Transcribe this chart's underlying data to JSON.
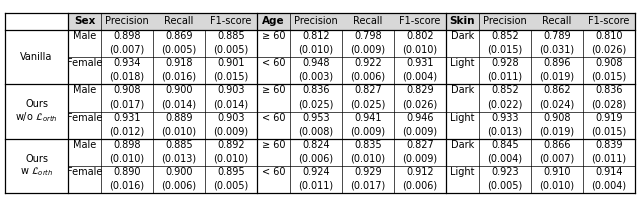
{
  "sections": [
    {
      "label": "Vanilla",
      "sex": {
        "Male": {
          "vals": [
            "0.898",
            "0.869",
            "0.885"
          ],
          "stds": [
            "(0.007)",
            "(0.005)",
            "(0.005)"
          ]
        },
        "Female": {
          "vals": [
            "0.934",
            "0.918",
            "0.901"
          ],
          "stds": [
            "(0.018)",
            "(0.016)",
            "(0.015)"
          ]
        }
      },
      "age": {
        "ge60": {
          "vals": [
            "0.812",
            "0.798",
            "0.802"
          ],
          "stds": [
            "(0.010)",
            "(0.009)",
            "(0.010)"
          ]
        },
        "lt60": {
          "vals": [
            "0.948",
            "0.922",
            "0.931"
          ],
          "stds": [
            "(0.003)",
            "(0.006)",
            "(0.004)"
          ]
        }
      },
      "skin": {
        "Dark": {
          "vals": [
            "0.852",
            "0.789",
            "0.810"
          ],
          "stds": [
            "(0.015)",
            "(0.031)",
            "(0.026)"
          ]
        },
        "Light": {
          "vals": [
            "0.928",
            "0.896",
            "0.908"
          ],
          "stds": [
            "(0.011)",
            "(0.019)",
            "(0.015)"
          ]
        }
      }
    },
    {
      "label": "Ours\nw/o",
      "sex": {
        "Male": {
          "vals": [
            "0.908",
            "0.900",
            "0.903"
          ],
          "stds": [
            "(0.017)",
            "(0.014)",
            "(0.014)"
          ]
        },
        "Female": {
          "vals": [
            "0.931",
            "0.889",
            "0.903"
          ],
          "stds": [
            "(0.012)",
            "(0.010)",
            "(0.009)"
          ]
        }
      },
      "age": {
        "ge60": {
          "vals": [
            "0.836",
            "0.827",
            "0.829"
          ],
          "stds": [
            "(0.025)",
            "(0.025)",
            "(0.026)"
          ]
        },
        "lt60": {
          "vals": [
            "0.953",
            "0.941",
            "0.946"
          ],
          "stds": [
            "(0.008)",
            "(0.009)",
            "(0.009)"
          ]
        }
      },
      "skin": {
        "Dark": {
          "vals": [
            "0.852",
            "0.862",
            "0.836"
          ],
          "stds": [
            "(0.022)",
            "(0.024)",
            "(0.028)"
          ]
        },
        "Light": {
          "vals": [
            "0.933",
            "0.908",
            "0.919"
          ],
          "stds": [
            "(0.013)",
            "(0.019)",
            "(0.015)"
          ]
        }
      }
    },
    {
      "label": "Ours\nw",
      "sex": {
        "Male": {
          "vals": [
            "0.898",
            "0.885",
            "0.892"
          ],
          "stds": [
            "(0.010)",
            "(0.013)",
            "(0.010)"
          ]
        },
        "Female": {
          "vals": [
            "0.890",
            "0.900",
            "0.895"
          ],
          "stds": [
            "(0.016)",
            "(0.006)",
            "(0.005)"
          ]
        }
      },
      "age": {
        "ge60": {
          "vals": [
            "0.824",
            "0.835",
            "0.827"
          ],
          "stds": [
            "(0.006)",
            "(0.010)",
            "(0.009)"
          ]
        },
        "lt60": {
          "vals": [
            "0.924",
            "0.929",
            "0.912"
          ],
          "stds": [
            "(0.011)",
            "(0.017)",
            "(0.006)"
          ]
        }
      },
      "skin": {
        "Dark": {
          "vals": [
            "0.845",
            "0.866",
            "0.839"
          ],
          "stds": [
            "(0.004)",
            "(0.007)",
            "(0.011)"
          ]
        },
        "Light": {
          "vals": [
            "0.923",
            "0.910",
            "0.914"
          ],
          "stds": [
            "(0.005)",
            "(0.010)",
            "(0.004)"
          ]
        }
      }
    }
  ],
  "font_size": 7.0,
  "header_font_size": 7.5,
  "bg_color": "#ffffff"
}
